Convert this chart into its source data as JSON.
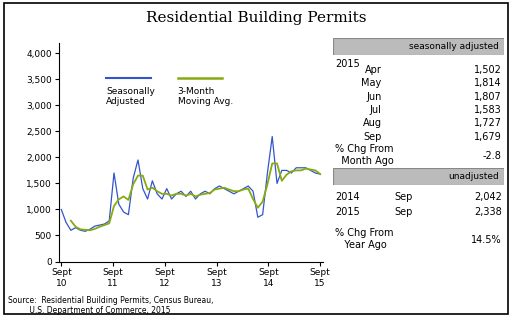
{
  "title": "Residential Building Permits",
  "source_text": "Source:  Residential Building Permits, Census Bureau,\n         U.S. Department of Commerce, 2015",
  "sa_year": "2015",
  "sa_months": [
    "Apr",
    "May",
    "Jun",
    "Jul",
    "Aug",
    "Sep"
  ],
  "sa_values": [
    "1,502",
    "1,814",
    "1,807",
    "1,583",
    "1,727",
    "1,679"
  ],
  "sa_pct_chg_value": "-2.8",
  "ua_rows": [
    [
      "2014",
      "Sep",
      "2,042"
    ],
    [
      "2015",
      "Sep",
      "2,338"
    ]
  ],
  "ua_pct_chg_value": "14.5%",
  "x_tick_labels": [
    "Sept\n10",
    "Sept\n11",
    "Sept\n12",
    "Sept\n13",
    "Sept\n14",
    "Sept\n15"
  ],
  "y_ticks": [
    0,
    500,
    1000,
    1500,
    2000,
    2500,
    3000,
    3500,
    4000
  ],
  "ylim": [
    0,
    4200
  ],
  "blue_color": "#3355cc",
  "green_color": "#88aa11",
  "box_color": "#bbbbbb",
  "sa_data": [
    1000,
    750,
    600,
    650,
    600,
    580,
    620,
    680,
    700,
    720,
    780,
    1700,
    1100,
    950,
    900,
    1600,
    1950,
    1400,
    1200,
    1550,
    1300,
    1200,
    1400,
    1200,
    1300,
    1350,
    1250,
    1350,
    1200,
    1300,
    1350,
    1300,
    1400,
    1450,
    1400,
    1350,
    1300,
    1350,
    1400,
    1450,
    1350,
    850,
    900,
    1700,
    2400,
    1500,
    1750,
    1750,
    1700,
    1800,
    1800,
    1800,
    1750,
    1700,
    1679
  ],
  "ma_data": [
    null,
    null,
    783,
    667,
    617,
    610,
    600,
    627,
    667,
    700,
    733,
    1067,
    1193,
    1250,
    1183,
    1483,
    1650,
    1650,
    1383,
    1417,
    1350,
    1300,
    1300,
    1267,
    1300,
    1300,
    1267,
    1300,
    1250,
    1283,
    1300,
    1317,
    1383,
    1400,
    1417,
    1383,
    1350,
    1350,
    1383,
    1400,
    1200,
    1033,
    1150,
    1483,
    1883,
    1883,
    1550,
    1667,
    1733,
    1750,
    1750,
    1783,
    1767,
    1750,
    1679
  ]
}
